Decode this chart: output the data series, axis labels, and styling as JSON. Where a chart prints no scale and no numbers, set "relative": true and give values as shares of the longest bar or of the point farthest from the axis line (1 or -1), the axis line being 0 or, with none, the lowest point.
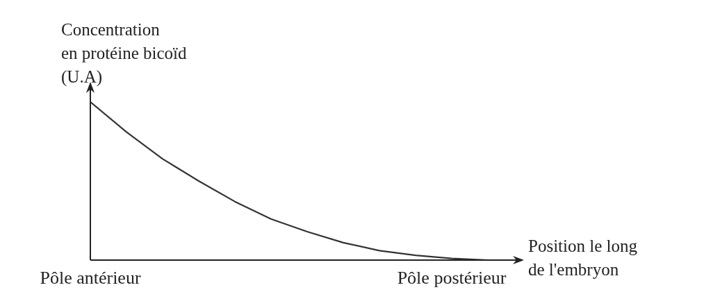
{
  "chart_data": {
    "type": "line",
    "relative": true,
    "ylabel": "Concentration\nen protéine bicoïd\n(U.A)",
    "xlabel": "Position le long\nde l'embryon",
    "categories": [
      "Pôle antérieur",
      null,
      null,
      null,
      null,
      null,
      null,
      null,
      null,
      null,
      "Pôle postérieur",
      null,
      null
    ],
    "series": [
      {
        "color": "#333333",
        "values": [
          1,
          0.81,
          0.64,
          0.5,
          0.37,
          0.26,
          0.18,
          0.11,
          0.06,
          0.03,
          0.01,
          0,
          null
        ]
      }
    ],
    "grid": false,
    "legend": false,
    "marker": "none",
    "line_style": "solid"
  }
}
